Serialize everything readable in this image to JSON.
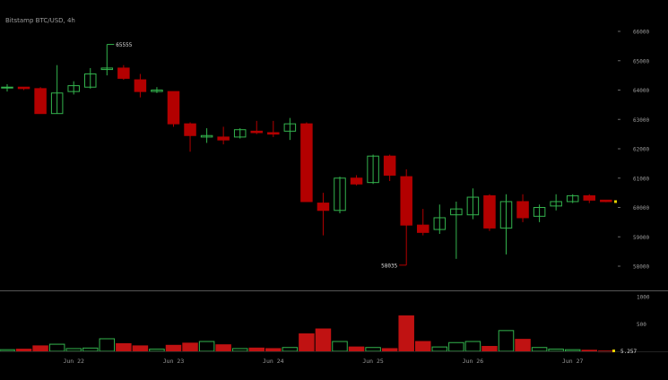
{
  "chart_data": {
    "type": "candlestick",
    "title": "Bitstamp BTC/USD, 4h",
    "price_axis": {
      "ticks": [
        "66000",
        "65000",
        "64000",
        "63000",
        "62000",
        "61000",
        "60000",
        "59000",
        "58000"
      ],
      "ylim": [
        57700,
        66300
      ]
    },
    "volume_axis": {
      "ticks": [
        "1000",
        "500"
      ],
      "ylim": [
        0,
        1100
      ]
    },
    "x_labels": [
      "Jun 22",
      "Jun 23",
      "Jun 24",
      "Jun 25",
      "Jun 26",
      "Jun 27"
    ],
    "annotations": {
      "high": "65555",
      "low": "58035",
      "last_volume": "5.257"
    },
    "colors": {
      "up": "#33b34d",
      "down": "#b30000",
      "down_bar": "#c01212",
      "text": "#9a9a9a",
      "separator": "#555555"
    },
    "candles": [
      {
        "o": 64100,
        "h": 64200,
        "l": 63950,
        "c": 64100,
        "v": 30
      },
      {
        "o": 64100,
        "h": 64100,
        "l": 64000,
        "c": 64050,
        "v": 40
      },
      {
        "o": 64050,
        "h": 64100,
        "l": 63200,
        "c": 63200,
        "v": 100
      },
      {
        "o": 63200,
        "h": 64850,
        "l": 63200,
        "c": 63900,
        "v": 130
      },
      {
        "o": 63950,
        "h": 64300,
        "l": 63850,
        "c": 64150,
        "v": 50
      },
      {
        "o": 64100,
        "h": 64750,
        "l": 64050,
        "c": 64550,
        "v": 60
      },
      {
        "o": 64700,
        "h": 65555,
        "l": 64500,
        "c": 64750,
        "v": 230
      },
      {
        "o": 64750,
        "h": 64850,
        "l": 64350,
        "c": 64400,
        "v": 140
      },
      {
        "o": 64350,
        "h": 64550,
        "l": 63750,
        "c": 63950,
        "v": 100
      },
      {
        "o": 63950,
        "h": 64100,
        "l": 63900,
        "c": 64000,
        "v": 40
      },
      {
        "o": 63950,
        "h": 63950,
        "l": 62750,
        "c": 62850,
        "v": 110
      },
      {
        "o": 62850,
        "h": 62900,
        "l": 61900,
        "c": 62450,
        "v": 150
      },
      {
        "o": 62400,
        "h": 62700,
        "l": 62200,
        "c": 62450,
        "v": 180
      },
      {
        "o": 62400,
        "h": 62750,
        "l": 62150,
        "c": 62300,
        "v": 120
      },
      {
        "o": 62400,
        "h": 62700,
        "l": 62350,
        "c": 62650,
        "v": 50
      },
      {
        "o": 62600,
        "h": 62950,
        "l": 62500,
        "c": 62550,
        "v": 60
      },
      {
        "o": 62550,
        "h": 62950,
        "l": 62400,
        "c": 62500,
        "v": 50
      },
      {
        "o": 62600,
        "h": 63050,
        "l": 62300,
        "c": 62850,
        "v": 70
      },
      {
        "o": 62850,
        "h": 62900,
        "l": 60200,
        "c": 60200,
        "v": 320
      },
      {
        "o": 60150,
        "h": 60500,
        "l": 59050,
        "c": 59900,
        "v": 410
      },
      {
        "o": 59900,
        "h": 61050,
        "l": 59800,
        "c": 61000,
        "v": 180
      },
      {
        "o": 61000,
        "h": 61100,
        "l": 60750,
        "c": 60800,
        "v": 80
      },
      {
        "o": 60850,
        "h": 61800,
        "l": 60800,
        "c": 61750,
        "v": 70
      },
      {
        "o": 61750,
        "h": 61800,
        "l": 60900,
        "c": 61100,
        "v": 50
      },
      {
        "o": 61050,
        "h": 61300,
        "l": 58035,
        "c": 59400,
        "v": 650
      },
      {
        "o": 59400,
        "h": 59950,
        "l": 59050,
        "c": 59150,
        "v": 180
      },
      {
        "o": 59250,
        "h": 60100,
        "l": 59100,
        "c": 59650,
        "v": 80
      },
      {
        "o": 59750,
        "h": 60200,
        "l": 58250,
        "c": 59950,
        "v": 160
      },
      {
        "o": 59750,
        "h": 60650,
        "l": 59600,
        "c": 60350,
        "v": 180
      },
      {
        "o": 60400,
        "h": 60450,
        "l": 59200,
        "c": 59300,
        "v": 90
      },
      {
        "o": 59300,
        "h": 60450,
        "l": 58400,
        "c": 60200,
        "v": 380
      },
      {
        "o": 60200,
        "h": 60450,
        "l": 59500,
        "c": 59650,
        "v": 220
      },
      {
        "o": 59700,
        "h": 60100,
        "l": 59500,
        "c": 60000,
        "v": 70
      },
      {
        "o": 60050,
        "h": 60450,
        "l": 59900,
        "c": 60200,
        "v": 40
      },
      {
        "o": 60200,
        "h": 60450,
        "l": 60150,
        "c": 60400,
        "v": 30
      },
      {
        "o": 60400,
        "h": 60450,
        "l": 60150,
        "c": 60250,
        "v": 20
      },
      {
        "o": 60250,
        "h": 60250,
        "l": 60180,
        "c": 60200,
        "v": 5.257
      }
    ]
  }
}
